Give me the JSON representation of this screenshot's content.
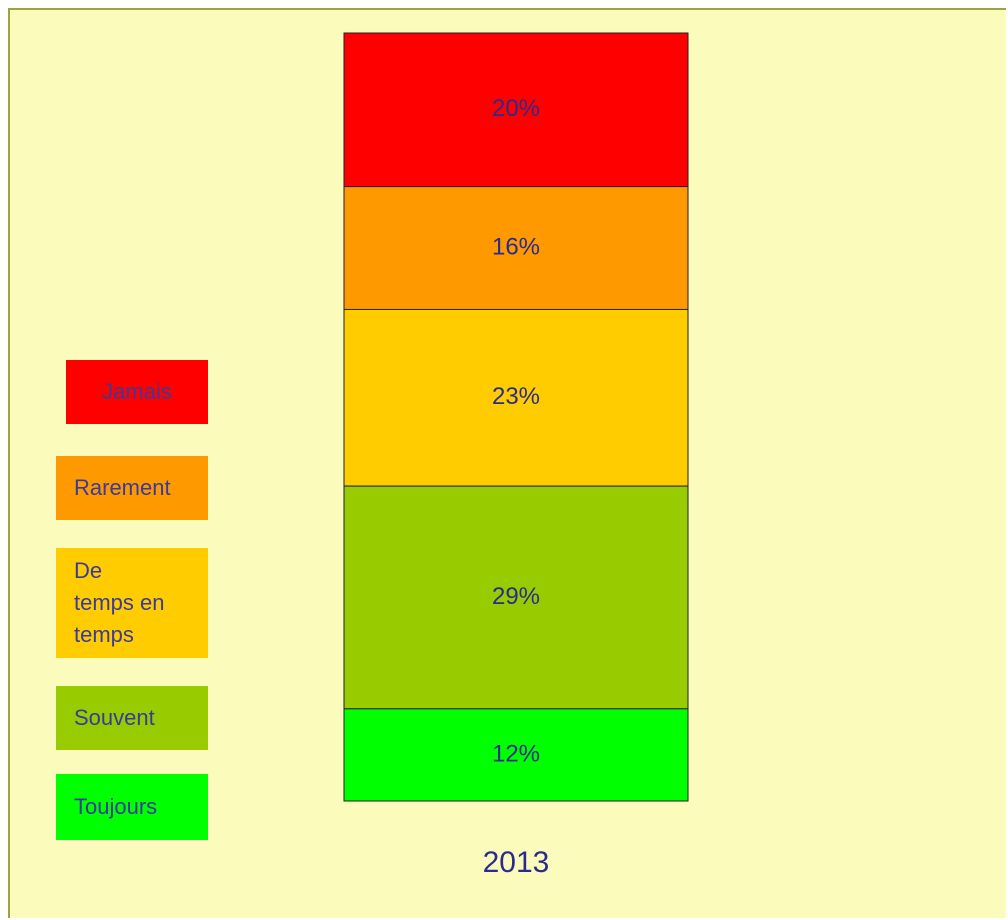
{
  "chart_data": {
    "type": "stacked_bar",
    "categories": [
      "2013"
    ],
    "series": [
      {
        "name": "Jamais",
        "color": "#ff0000",
        "values": [
          20
        ],
        "value_labels": [
          "20%"
        ]
      },
      {
        "name": "Rarement",
        "color": "#ff9900",
        "values": [
          16
        ],
        "value_labels": [
          "16%"
        ]
      },
      {
        "name": "De temps en temps",
        "color": "#ffcc00",
        "values": [
          23
        ],
        "value_labels": [
          "23%"
        ]
      },
      {
        "name": "Souvent",
        "color": "#99cc00",
        "values": [
          29
        ],
        "value_labels": [
          "29%"
        ]
      },
      {
        "name": "Toujours",
        "color": "#00ff00",
        "values": [
          12
        ],
        "value_labels": [
          "12%"
        ]
      }
    ],
    "legend": "left"
  }
}
